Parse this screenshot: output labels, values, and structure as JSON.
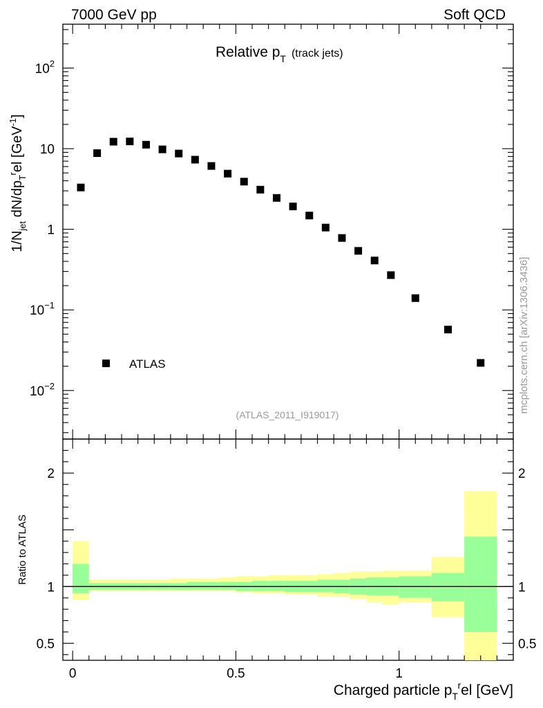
{
  "header": {
    "left": "7000 GeV pp",
    "right": "Soft QCD"
  },
  "side_label": "mcplots.cern.ch [arXiv:1306.3436]",
  "chart_data": {
    "type": "scatter",
    "title": "Relative p_T (track jets)",
    "title_main": "Relative p",
    "title_sub": "T",
    "title_note": "(track jets)",
    "analysis_tag": "(ATLAS_2011_I919017)",
    "xlabel": "Charged particle p_T^rel [GeV]",
    "ylabel": "1/N_jet dN/dp_T^rel [GeV^-1]",
    "ratio_ylabel": "Ratio to ATLAS",
    "xlim": [
      -0.03,
      1.35
    ],
    "ylim": [
      0.0025,
      350
    ],
    "yscale": "log",
    "x_ticks": [
      0,
      0.5,
      1
    ],
    "x_tick_labels": [
      "0",
      "0.5",
      "1"
    ],
    "y_ticks": [
      0.01,
      0.1,
      1,
      10,
      100
    ],
    "y_tick_labels": [
      "10^-2",
      "10^-1",
      "1",
      "10",
      "10^2"
    ],
    "legend": [
      {
        "name": "ATLAS",
        "marker": "square"
      }
    ],
    "legend_position": "lower-left",
    "series": [
      {
        "name": "ATLAS",
        "x": [
          0.025,
          0.075,
          0.125,
          0.175,
          0.225,
          0.275,
          0.325,
          0.375,
          0.425,
          0.475,
          0.525,
          0.575,
          0.625,
          0.675,
          0.725,
          0.775,
          0.825,
          0.875,
          0.925,
          0.975,
          1.05,
          1.15,
          1.25
        ],
        "y": [
          3.3,
          8.8,
          12.2,
          12.3,
          11.2,
          9.8,
          8.7,
          7.3,
          6.1,
          4.9,
          3.9,
          3.1,
          2.45,
          1.92,
          1.48,
          1.05,
          0.78,
          0.54,
          0.41,
          0.27,
          0.14,
          0.057,
          0.022
        ]
      }
    ],
    "ratio": {
      "ylim": [
        0.35,
        2.3
      ],
      "y_ticks": [
        0.5,
        1,
        2
      ],
      "y_tick_labels": [
        "0.5",
        "1",
        "2"
      ],
      "bin_edges": [
        0,
        0.05,
        0.1,
        0.15,
        0.2,
        0.25,
        0.3,
        0.35,
        0.4,
        0.45,
        0.5,
        0.55,
        0.6,
        0.65,
        0.7,
        0.75,
        0.8,
        0.85,
        0.9,
        0.95,
        1.0,
        1.1,
        1.2,
        1.3
      ],
      "stat_band_low": [
        0.94,
        0.97,
        0.97,
        0.97,
        0.97,
        0.97,
        0.97,
        0.97,
        0.97,
        0.97,
        0.96,
        0.96,
        0.96,
        0.95,
        0.95,
        0.95,
        0.94,
        0.93,
        0.92,
        0.92,
        0.9,
        0.87,
        0.6
      ],
      "stat_band_high": [
        1.2,
        1.03,
        1.03,
        1.03,
        1.03,
        1.03,
        1.03,
        1.04,
        1.04,
        1.04,
        1.04,
        1.05,
        1.05,
        1.05,
        1.05,
        1.06,
        1.06,
        1.07,
        1.08,
        1.08,
        1.09,
        1.12,
        1.44
      ],
      "syst_band_low": [
        0.88,
        0.96,
        0.96,
        0.96,
        0.96,
        0.96,
        0.96,
        0.96,
        0.96,
        0.96,
        0.95,
        0.94,
        0.94,
        0.93,
        0.93,
        0.91,
        0.91,
        0.89,
        0.86,
        0.84,
        0.86,
        0.73,
        0.35
      ],
      "syst_band_high": [
        1.4,
        1.06,
        1.06,
        1.06,
        1.06,
        1.06,
        1.07,
        1.07,
        1.07,
        1.08,
        1.09,
        1.09,
        1.1,
        1.1,
        1.1,
        1.11,
        1.12,
        1.13,
        1.13,
        1.14,
        1.14,
        1.26,
        1.84
      ],
      "reference_line": 1
    },
    "colors": {
      "marker": "#000000",
      "stat_band": "#99ff99",
      "syst_band": "#ffff99",
      "frame": "#000000",
      "tag": "#999999",
      "reference": "#000000"
    }
  }
}
